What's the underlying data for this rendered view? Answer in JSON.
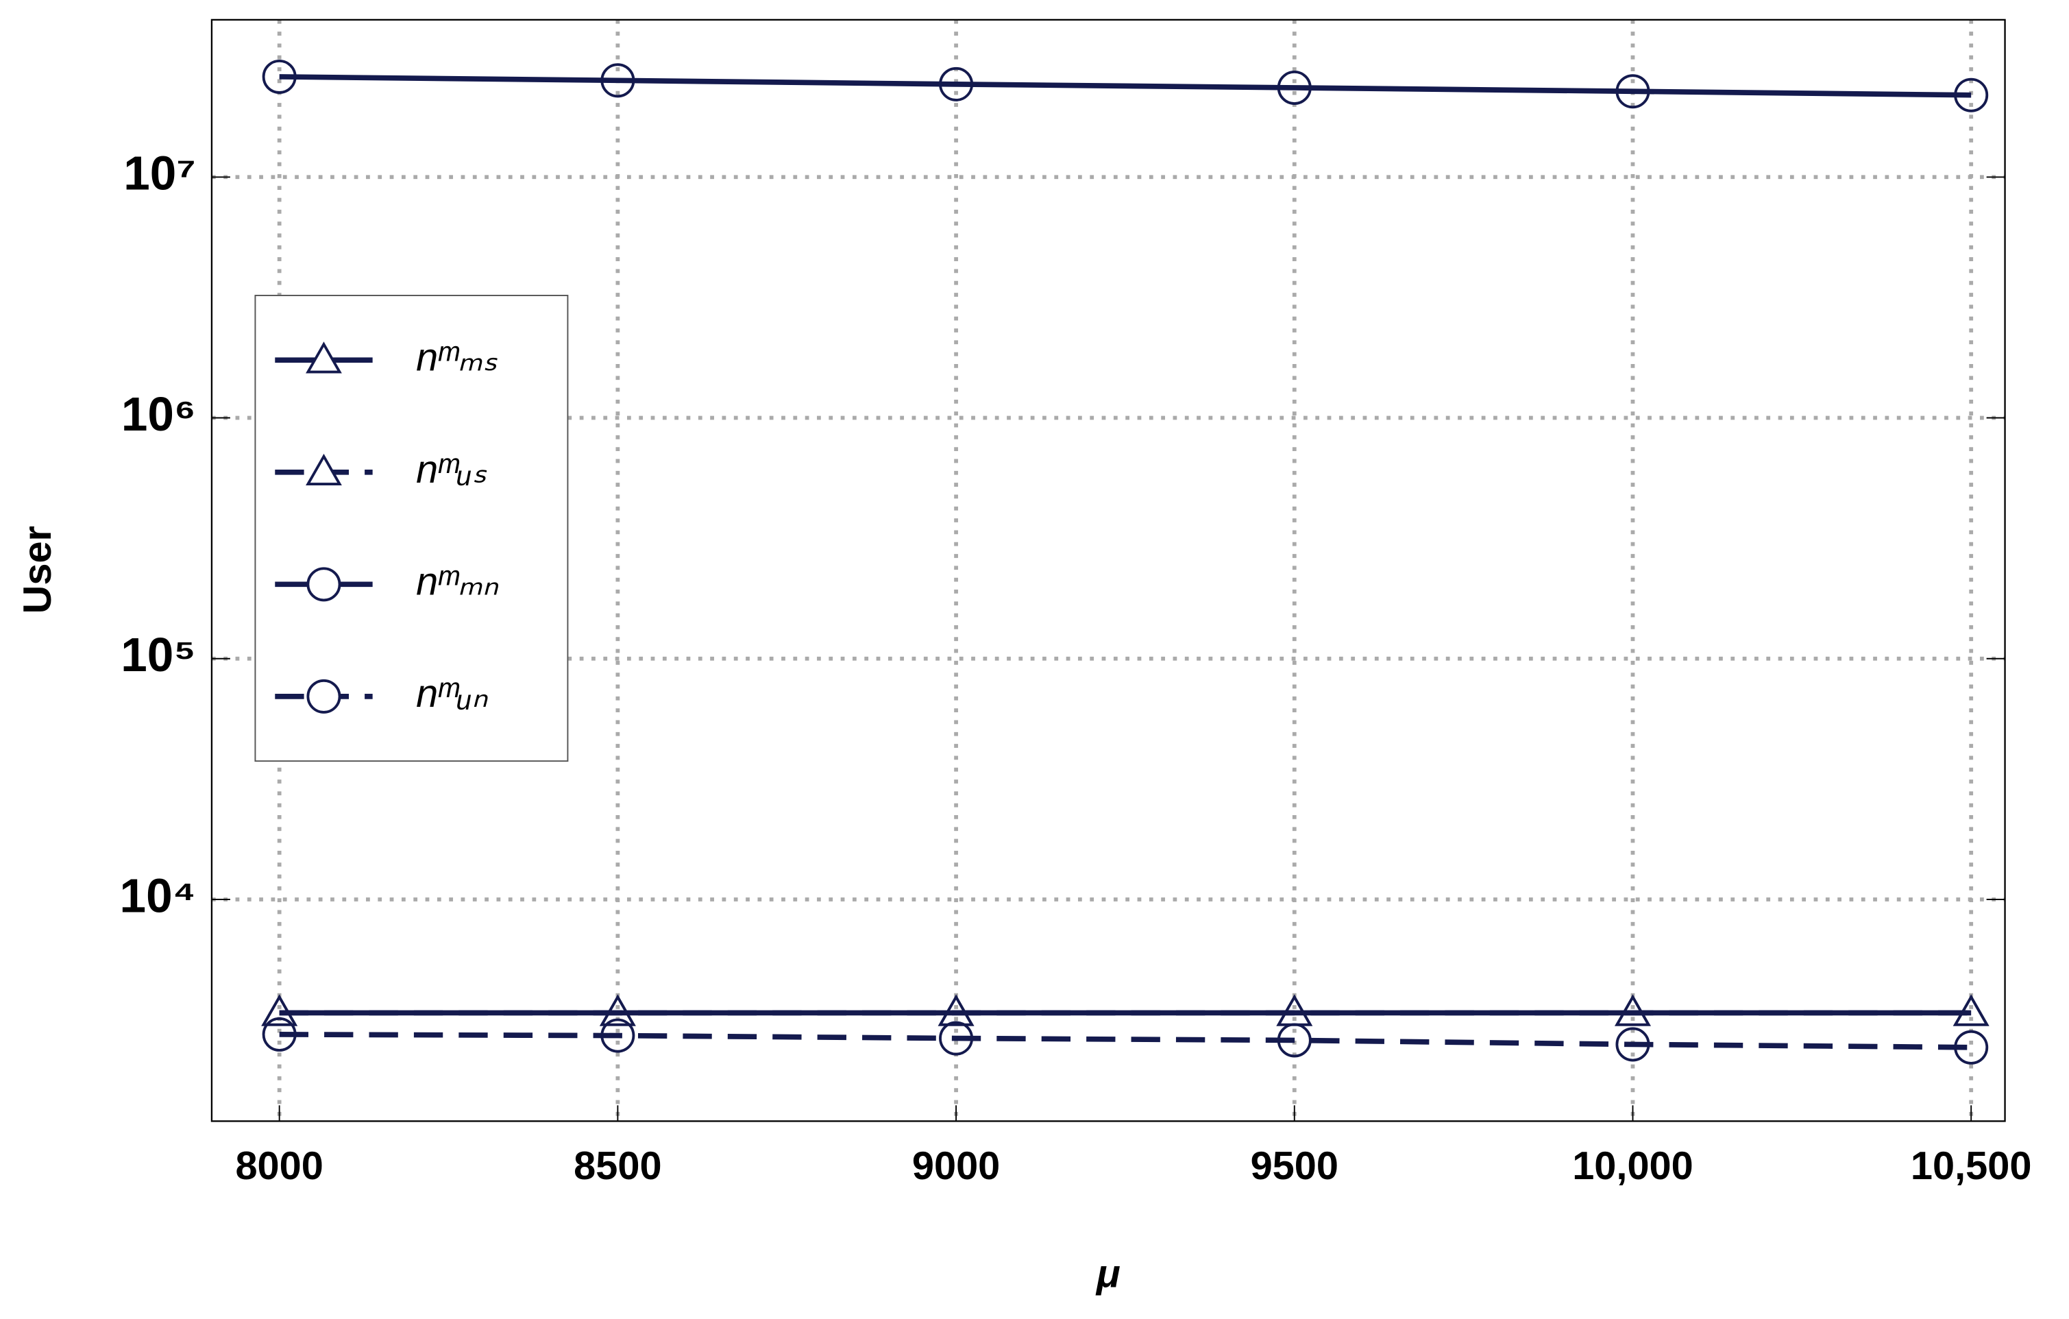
{
  "chart_data": {
    "type": "line",
    "x_label": "μ",
    "y_label": "User",
    "x": [
      8000,
      8500,
      9000,
      9500,
      10000,
      10500
    ],
    "xlim": [
      7900,
      10550
    ],
    "xticks": [
      8000,
      8500,
      9000,
      9500,
      {
        "value": 10000,
        "label": "10,000"
      },
      {
        "value": 10500,
        "label": "10,500"
      }
    ],
    "ylim": [
      1200,
      45000000
    ],
    "log_y": true,
    "yticks": [
      {
        "value": 10000,
        "label": "10⁴"
      },
      {
        "value": 100000,
        "label": "10⁵"
      },
      {
        "value": 1000000,
        "label": "10⁶"
      },
      {
        "value": 10000000,
        "label": "10⁷"
      }
    ],
    "grid": true,
    "series": [
      {
        "name": "nᵐₘₛ",
        "color": "#141a4e",
        "dash": false,
        "marker": "triangle",
        "values": [
          3380,
          3380,
          3380,
          3380,
          3380,
          3380
        ]
      },
      {
        "name": "nᵐᵤₛ",
        "color": "#141a4e",
        "dash": true,
        "marker": "triangle",
        "values": [
          3380,
          3380,
          3380,
          3380,
          3380,
          3380
        ]
      },
      {
        "name": "nᵐₘₙ",
        "color": "#141a4e",
        "dash": false,
        "marker": "circle",
        "values": [
          26100000,
          25200000,
          24300000,
          23500000,
          22700000,
          21900000
        ]
      },
      {
        "name": "nᵐᵤₙ",
        "color": "#141a4e",
        "dash": true,
        "marker": "circle",
        "values": [
          2750,
          2720,
          2650,
          2600,
          2500,
          2430
        ]
      }
    ]
  }
}
